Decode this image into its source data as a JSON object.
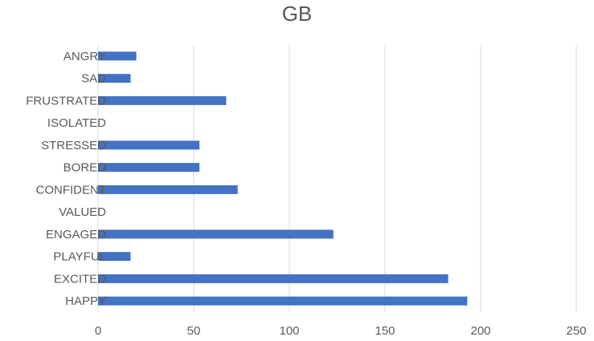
{
  "chart_data": {
    "type": "bar",
    "orientation": "horizontal",
    "title": "GB",
    "xlabel": "",
    "ylabel": "",
    "categories": [
      "HAPPY",
      "EXCITED",
      "PLAYFUL",
      "ENGAGED",
      "VALUED",
      "CONFIDENT",
      "BORED",
      "STRESSED",
      "ISOLATED",
      "FRUSTRATED",
      "SAD",
      "ANGRY"
    ],
    "values": [
      193,
      183,
      17,
      123,
      0,
      73,
      53,
      53,
      0,
      67,
      17,
      20
    ],
    "xlim": [
      0,
      250
    ],
    "xticks": [
      0,
      50,
      100,
      150,
      200,
      250
    ],
    "grid": "vertical",
    "legend": "none",
    "bar_color": "#4472C4",
    "grid_color": "#d9d9d9",
    "text_color": "#595959"
  }
}
